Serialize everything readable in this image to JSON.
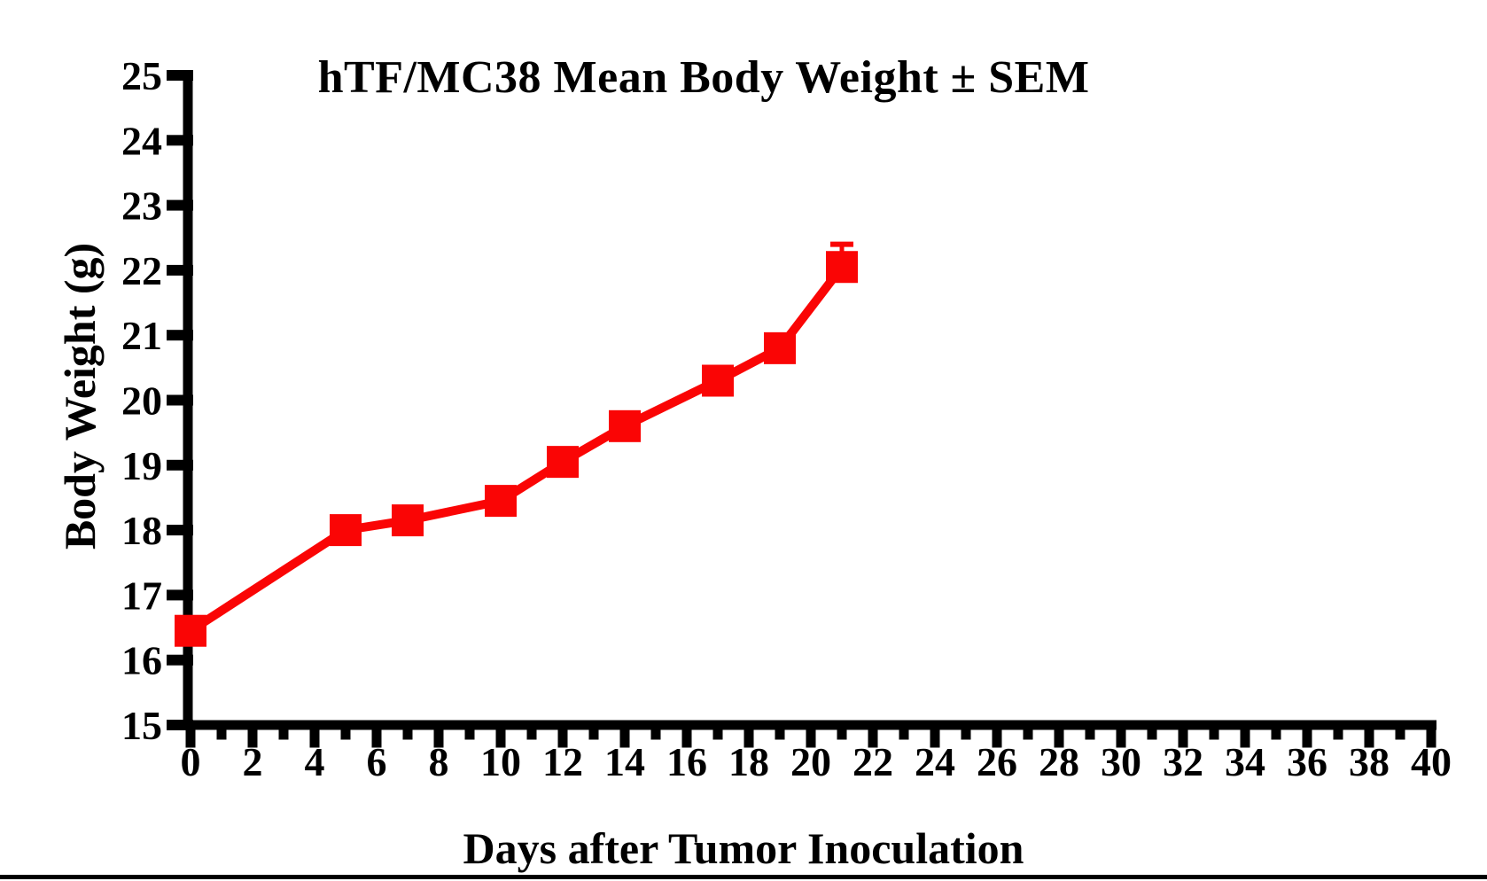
{
  "page": {
    "background": "#ffffff",
    "border_color": "#000000"
  },
  "chart_data": {
    "type": "line",
    "title": "hTF/MC38 Mean Body Weight ± SEM",
    "xlabel": "Days after Tumor Inoculation",
    "ylabel": "Body Weight (g)",
    "x": [
      0,
      5,
      7,
      10,
      12,
      14,
      17,
      19,
      21
    ],
    "series": [
      {
        "name": "hTF/MC38 Mean Body Weight",
        "values": [
          16.45,
          18.0,
          18.15,
          18.45,
          19.05,
          19.6,
          20.3,
          20.8,
          22.05
        ],
        "sem_upper": [
          null,
          null,
          null,
          null,
          null,
          null,
          null,
          null,
          0.35
        ],
        "color": "#FA0505",
        "marker": "square"
      }
    ],
    "xlim": [
      0,
      40
    ],
    "ylim": [
      15,
      25
    ],
    "xtick_labels": [
      "0",
      "2",
      "4",
      "6",
      "8",
      "10",
      "12",
      "14",
      "16",
      "18",
      "20",
      "22",
      "24",
      "26",
      "28",
      "30",
      "32",
      "34",
      "36",
      "38",
      "40"
    ],
    "xticks_major": [
      0,
      2,
      4,
      6,
      8,
      10,
      12,
      14,
      16,
      18,
      20,
      22,
      24,
      26,
      28,
      30,
      32,
      34,
      36,
      38,
      40
    ],
    "xticks_minor": [
      1,
      3,
      5,
      7,
      9,
      11,
      13,
      15,
      17,
      19,
      21,
      23,
      25,
      27,
      29,
      31,
      33,
      35,
      37,
      39
    ],
    "ytick_labels": [
      "15",
      "16",
      "17",
      "18",
      "19",
      "20",
      "21",
      "22",
      "23",
      "24",
      "25"
    ],
    "yticks": [
      15,
      16,
      17,
      18,
      19,
      20,
      21,
      22,
      23,
      24,
      25
    ],
    "grid": false,
    "legend": "none",
    "axis_color": "#000000"
  }
}
